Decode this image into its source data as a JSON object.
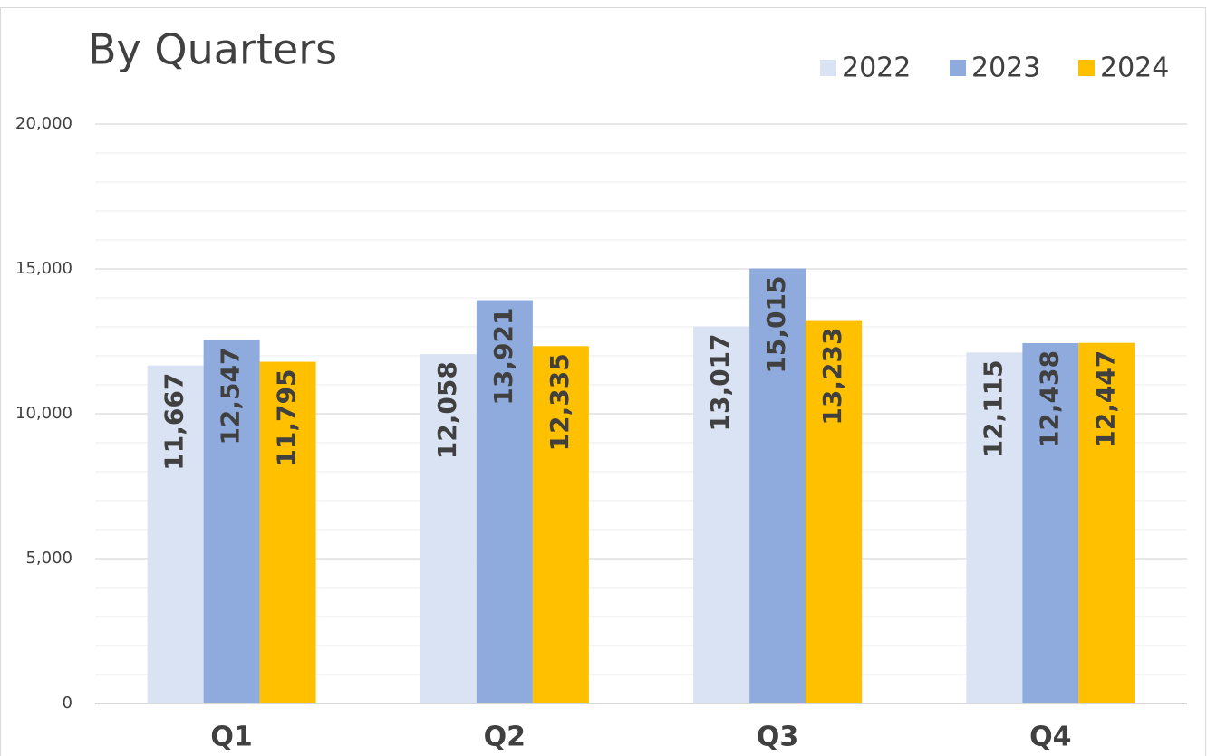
{
  "chart_data": {
    "type": "bar",
    "title": "By Quarters",
    "categories": [
      "Q1",
      "Q2",
      "Q3",
      "Q4"
    ],
    "series": [
      {
        "name": "2022",
        "color": "#dae3f3",
        "values": [
          11667,
          12058,
          13017,
          12115
        ],
        "value_labels": [
          "11,667",
          "12,058",
          "13,017",
          "12,115"
        ]
      },
      {
        "name": "2023",
        "color": "#8faadc",
        "values": [
          12547,
          13921,
          15015,
          12438
        ],
        "value_labels": [
          "12,547",
          "13,921",
          "15,015",
          "12,438"
        ]
      },
      {
        "name": "2024",
        "color": "#ffc000",
        "values": [
          11795,
          12335,
          13233,
          12447
        ],
        "value_labels": [
          "11,795",
          "12,335",
          "13,233",
          "12,447"
        ]
      }
    ],
    "ylim": [
      0,
      20000
    ],
    "yticks": [
      0,
      {
        "value": 5000,
        "label": "5,000"
      },
      {
        "value": 10000,
        "label": "10,000"
      },
      {
        "value": 15000,
        "label": "15,000"
      },
      {
        "value": 20000,
        "label": "20,000"
      }
    ],
    "yminorticks": [
      1000,
      2000,
      3000,
      4000,
      6000,
      7000,
      8000,
      9000,
      11000,
      12000,
      13000,
      14000,
      16000,
      17000,
      18000,
      19000
    ],
    "grid": true,
    "legend": "top-right"
  }
}
